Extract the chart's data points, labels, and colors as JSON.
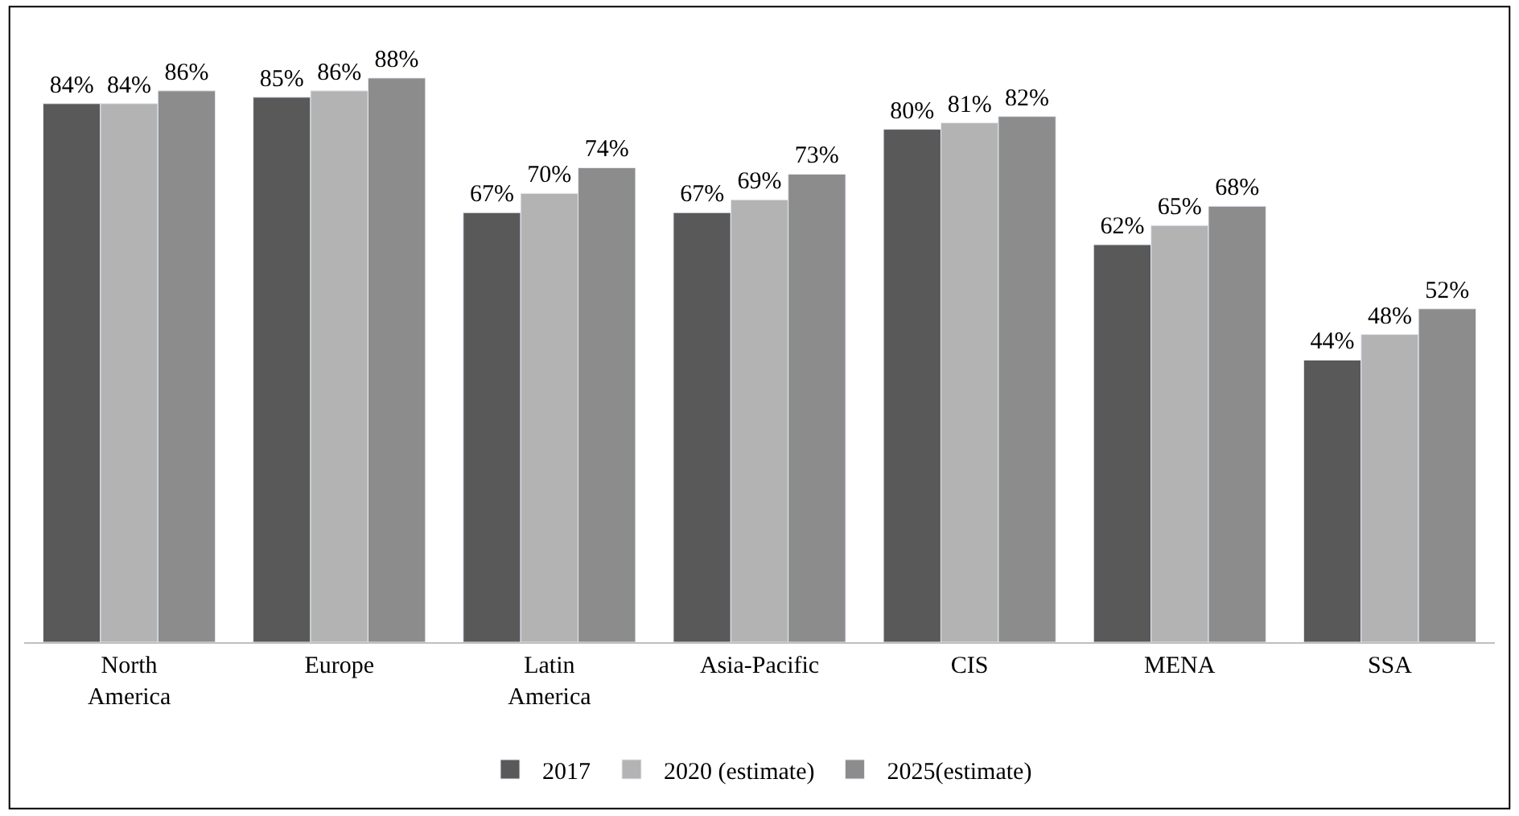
{
  "chart_data": {
    "type": "bar",
    "categories": [
      "North America",
      "Europe",
      "Latin America",
      "Asia-Pacific",
      "CIS",
      "MENA",
      "SSA"
    ],
    "series": [
      {
        "name": "2017",
        "color": "#595959",
        "values": [
          84,
          85,
          67,
          67,
          80,
          62,
          44
        ],
        "value_labels": [
          "84%",
          "85%",
          "67%",
          "67%",
          "80%",
          "62%",
          "44%"
        ]
      },
      {
        "name": "2020 (estimate)",
        "color": "#b3b3b3",
        "values": [
          84,
          86,
          70,
          69,
          81,
          65,
          48
        ],
        "value_labels": [
          "84%",
          "86%",
          "70%",
          "69%",
          "81%",
          "65%",
          "48%"
        ]
      },
      {
        "name": "2025(estimate)",
        "color": "#8c8c8c",
        "values": [
          86,
          88,
          74,
          73,
          82,
          68,
          52
        ],
        "value_labels": [
          "86%",
          "88%",
          "74%",
          "73%",
          "82%",
          "68%",
          "52%"
        ]
      }
    ],
    "legend": "bottom"
  }
}
